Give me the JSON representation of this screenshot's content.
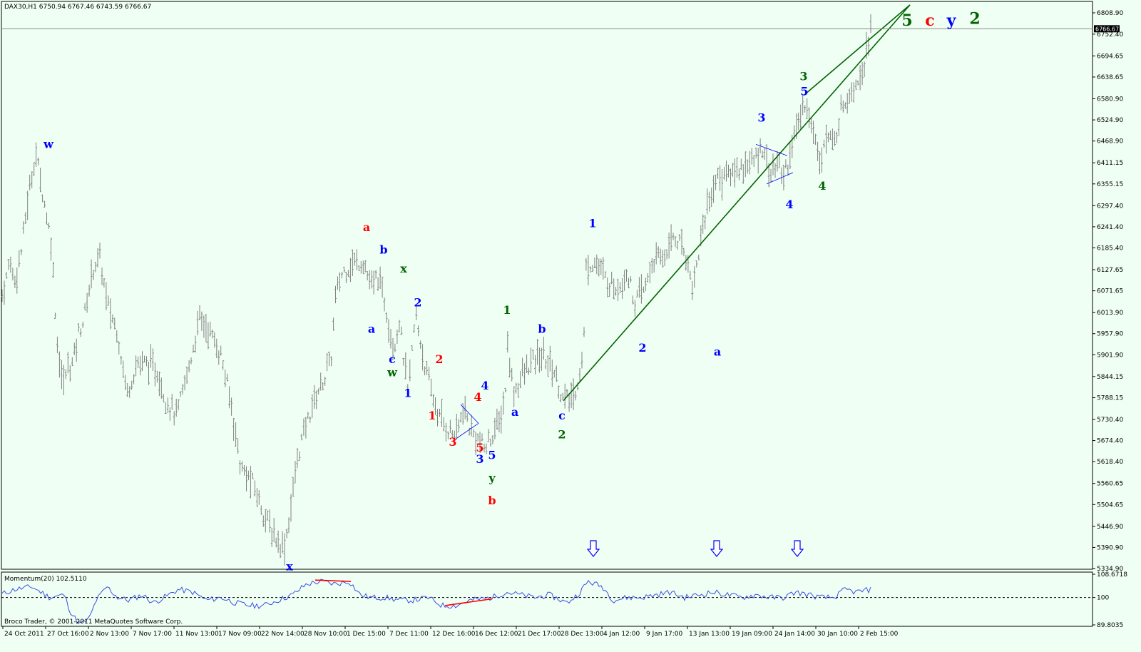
{
  "window": {
    "symbol_header": "DAX30,H1  6750.94 6767.46 6743.59 6766.67",
    "current_price_tag": "6766.67",
    "indicator_header": "Momentum(20) 102.5110",
    "copyright": "Broco Trader, © 2001-2011 MetaQuotes Software Corp."
  },
  "colors": {
    "background": "#f0fff4",
    "bars": "#808080",
    "momentum_line": "#3b4fe0",
    "trendline": "#006400",
    "divergence": "#ff0000",
    "wave_blue": "#0000ff",
    "wave_red": "#ff0000",
    "wave_green": "#006400"
  },
  "chart_data": [
    {
      "type": "bar",
      "title": "DAX30,H1",
      "ylim": [
        5334.9,
        6808.9
      ],
      "y_ticks": [
        "6808.90",
        "6752.40",
        "6694.65",
        "6638.65",
        "6580.90",
        "6524.90",
        "6468.90",
        "6411.15",
        "6355.15",
        "6297.40",
        "6241.40",
        "6185.40",
        "6127.65",
        "6071.65",
        "6013.90",
        "5957.90",
        "5901.90",
        "5844.15",
        "5788.15",
        "5730.40",
        "5674.40",
        "5618.40",
        "5560.65",
        "5504.65",
        "5446.90",
        "5390.90",
        "5334.90"
      ],
      "x_ticks": [
        "24 Oct 2011",
        "27 Oct 16:00",
        "2 Nov 13:00",
        "7 Nov 17:00",
        "11 Nov 13:00",
        "17 Nov 09:00",
        "22 Nov 14:00",
        "28 Nov 10:00",
        "1 Dec 15:00",
        "7 Dec 11:00",
        "12 Dec 16:00",
        "16 Dec 12:00",
        "21 Dec 17:00",
        "28 Dec 13:00",
        "4 Jan 12:00",
        "9 Jan 17:00",
        "13 Jan 13:00",
        "19 Jan 09:00",
        "24 Jan 14:00",
        "30 Jan 10:00",
        "2 Feb 15:00"
      ],
      "bar_count": 410,
      "last_close": 6766.67,
      "price_path": [
        [
          0,
          6040
        ],
        [
          8,
          6095
        ],
        [
          14,
          6160
        ],
        [
          20,
          6090
        ],
        [
          30,
          6180
        ],
        [
          38,
          6300
        ],
        [
          50,
          6440
        ],
        [
          60,
          6330
        ],
        [
          72,
          6200
        ],
        [
          80,
          5940
        ],
        [
          88,
          5820
        ],
        [
          95,
          5870
        ],
        [
          102,
          5880
        ],
        [
          110,
          5960
        ],
        [
          118,
          6000
        ],
        [
          130,
          6130
        ],
        [
          140,
          6160
        ],
        [
          150,
          6040
        ],
        [
          165,
          5960
        ],
        [
          178,
          5800
        ],
        [
          192,
          5880
        ],
        [
          205,
          5880
        ],
        [
          220,
          5860
        ],
        [
          233,
          5780
        ],
        [
          248,
          5740
        ],
        [
          265,
          5870
        ],
        [
          280,
          6000
        ],
        [
          295,
          5960
        ],
        [
          310,
          5900
        ],
        [
          325,
          5760
        ],
        [
          338,
          5600
        ],
        [
          355,
          5560
        ],
        [
          370,
          5480
        ],
        [
          385,
          5420
        ],
        [
          398,
          5390
        ],
        [
          405,
          5460
        ],
        [
          418,
          5640
        ],
        [
          430,
          5720
        ],
        [
          442,
          5790
        ],
        [
          455,
          5840
        ],
        [
          465,
          5900
        ],
        [
          470,
          6050
        ],
        [
          480,
          6120
        ],
        [
          495,
          6145
        ],
        [
          510,
          6150
        ],
        [
          520,
          6080
        ],
        [
          530,
          6110
        ],
        [
          540,
          6040
        ],
        [
          552,
          5920
        ],
        [
          560,
          5990
        ],
        [
          572,
          5800
        ],
        [
          583,
          6010
        ],
        [
          595,
          5880
        ],
        [
          605,
          5800
        ],
        [
          615,
          5740
        ],
        [
          630,
          5700
        ],
        [
          640,
          5690
        ],
        [
          650,
          5760
        ],
        [
          660,
          5700
        ],
        [
          670,
          5680
        ],
        [
          680,
          5650
        ],
        [
          690,
          5690
        ],
        [
          700,
          5720
        ],
        [
          708,
          5790
        ],
        [
          712,
          5930
        ],
        [
          720,
          5800
        ],
        [
          730,
          5840
        ],
        [
          745,
          5880
        ],
        [
          760,
          5900
        ],
        [
          775,
          5870
        ],
        [
          790,
          5780
        ],
        [
          805,
          5790
        ],
        [
          818,
          5900
        ],
        [
          822,
          6135
        ],
        [
          835,
          6150
        ],
        [
          850,
          6100
        ],
        [
          865,
          6080
        ],
        [
          880,
          6120
        ],
        [
          890,
          6040
        ],
        [
          905,
          6080
        ],
        [
          915,
          6150
        ],
        [
          930,
          6160
        ],
        [
          945,
          6220
        ],
        [
          960,
          6180
        ],
        [
          972,
          6080
        ],
        [
          985,
          6240
        ],
        [
          995,
          6320
        ],
        [
          1005,
          6370
        ],
        [
          1020,
          6380
        ],
        [
          1040,
          6400
        ],
        [
          1060,
          6420
        ],
        [
          1070,
          6460
        ],
        [
          1080,
          6380
        ],
        [
          1090,
          6410
        ],
        [
          1100,
          6380
        ],
        [
          1110,
          6450
        ],
        [
          1120,
          6520
        ],
        [
          1130,
          6580
        ],
        [
          1140,
          6490
        ],
        [
          1150,
          6430
        ],
        [
          1160,
          6480
        ],
        [
          1170,
          6460
        ],
        [
          1180,
          6560
        ],
        [
          1195,
          6610
        ],
        [
          1210,
          6660
        ],
        [
          1220,
          6766
        ]
      ],
      "trendlines": [
        {
          "from": [
            790,
            5780
          ],
          "to": [
            1276,
            6830
          ]
        },
        {
          "from": [
            1127,
            6590
          ],
          "to": [
            1276,
            6830
          ]
        }
      ],
      "horizontal_line": 6766.67,
      "wave_labels": [
        {
          "text": "w",
          "x": 68,
          "y": 6450,
          "color": "blue"
        },
        {
          "text": "x",
          "x": 406,
          "y": 5330,
          "color": "blue"
        },
        {
          "text": "a",
          "x": 514,
          "y": 6230,
          "color": "red"
        },
        {
          "text": "b",
          "x": 538,
          "y": 6170,
          "color": "blue"
        },
        {
          "text": "x",
          "x": 566,
          "y": 6120,
          "color": "green"
        },
        {
          "text": "a",
          "x": 521,
          "y": 5960,
          "color": "blue"
        },
        {
          "text": "c",
          "x": 550,
          "y": 5880,
          "color": "blue"
        },
        {
          "text": "w",
          "x": 550,
          "y": 5845,
          "color": "green"
        },
        {
          "text": "2",
          "x": 586,
          "y": 6030,
          "color": "blue"
        },
        {
          "text": "1",
          "x": 572,
          "y": 5790,
          "color": "blue"
        },
        {
          "text": "2",
          "x": 616,
          "y": 5880,
          "color": "red"
        },
        {
          "text": "1",
          "x": 606,
          "y": 5730,
          "color": "red"
        },
        {
          "text": "3",
          "x": 635,
          "y": 5660,
          "color": "red"
        },
        {
          "text": "4",
          "x": 670,
          "y": 5780,
          "color": "red"
        },
        {
          "text": "4",
          "x": 680,
          "y": 5810,
          "color": "blue"
        },
        {
          "text": "5",
          "x": 673,
          "y": 5645,
          "color": "red"
        },
        {
          "text": "3",
          "x": 673,
          "y": 5615,
          "color": "blue"
        },
        {
          "text": "5",
          "x": 690,
          "y": 5625,
          "color": "blue"
        },
        {
          "text": "y",
          "x": 690,
          "y": 5565,
          "color": "green"
        },
        {
          "text": "b",
          "x": 690,
          "y": 5505,
          "color": "red"
        },
        {
          "text": "1",
          "x": 711,
          "y": 6010,
          "color": "green"
        },
        {
          "text": "b",
          "x": 760,
          "y": 5960,
          "color": "blue"
        },
        {
          "text": "a",
          "x": 722,
          "y": 5740,
          "color": "blue"
        },
        {
          "text": "c",
          "x": 788,
          "y": 5730,
          "color": "blue"
        },
        {
          "text": "2",
          "x": 788,
          "y": 5680,
          "color": "green"
        },
        {
          "text": "1",
          "x": 831,
          "y": 6240,
          "color": "blue"
        },
        {
          "text": "2",
          "x": 901,
          "y": 5910,
          "color": "blue"
        },
        {
          "text": "a",
          "x": 1006,
          "y": 5900,
          "color": "blue"
        },
        {
          "text": "3",
          "x": 1068,
          "y": 6520,
          "color": "blue"
        },
        {
          "text": "4",
          "x": 1107,
          "y": 6290,
          "color": "blue"
        },
        {
          "text": "3",
          "x": 1127,
          "y": 6630,
          "color": "green"
        },
        {
          "text": "5",
          "x": 1128,
          "y": 6590,
          "color": "blue"
        },
        {
          "text": "4",
          "x": 1153,
          "y": 6340,
          "color": "green"
        },
        {
          "text": "5",
          "x": 1272,
          "y": 6775,
          "color": "green"
        },
        {
          "text": "c",
          "x": 1304,
          "y": 6775,
          "color": "red"
        },
        {
          "text": "y",
          "x": 1334,
          "y": 6775,
          "color": "blue"
        },
        {
          "text": "2",
          "x": 1367,
          "y": 6780,
          "color": "green"
        }
      ],
      "signal_arrows": [
        {
          "x": 832,
          "direction": "down"
        },
        {
          "x": 1005,
          "direction": "down"
        },
        {
          "x": 1118,
          "direction": "down"
        }
      ]
    },
    {
      "type": "line",
      "title": "Momentum(20) 102.5110",
      "ylim": [
        89.8035,
        108.6718
      ],
      "y_ticks": [
        "108.6718",
        "100",
        "89.8035"
      ],
      "reference_level": 100,
      "series": [
        {
          "name": "Momentum(20)",
          "values_path": [
            [
              0,
              101
            ],
            [
              20,
              103
            ],
            [
              45,
              104
            ],
            [
              70,
              100
            ],
            [
              90,
              101
            ],
            [
              100,
              94
            ],
            [
              112,
              90
            ],
            [
              125,
              92
            ],
            [
              135,
              99
            ],
            [
              150,
              104
            ],
            [
              165,
              100
            ],
            [
              180,
              99
            ],
            [
              200,
              101
            ],
            [
              215,
              98
            ],
            [
              230,
              100
            ],
            [
              250,
              103
            ],
            [
              270,
              102
            ],
            [
              290,
              99
            ],
            [
              310,
              100
            ],
            [
              330,
              98
            ],
            [
              350,
              97
            ],
            [
              370,
              97
            ],
            [
              390,
              99
            ],
            [
              410,
              101
            ],
            [
              420,
              103
            ],
            [
              430,
              105
            ],
            [
              450,
              106
            ],
            [
              470,
              105
            ],
            [
              490,
              106
            ],
            [
              505,
              101
            ],
            [
              520,
              100
            ],
            [
              540,
              100
            ],
            [
              560,
              99
            ],
            [
              580,
              99
            ],
            [
              600,
              100
            ],
            [
              620,
              97
            ],
            [
              640,
              97
            ],
            [
              660,
              99
            ],
            [
              690,
              100
            ],
            [
              710,
              102
            ],
            [
              730,
              101
            ],
            [
              750,
              100
            ],
            [
              770,
              101
            ],
            [
              795,
              98
            ],
            [
              810,
              101
            ],
            [
              825,
              106
            ],
            [
              845,
              104
            ],
            [
              860,
              99
            ],
            [
              880,
              100
            ],
            [
              900,
              100
            ],
            [
              920,
              101
            ],
            [
              940,
              102
            ],
            [
              960,
              100
            ],
            [
              980,
              101
            ],
            [
              1000,
              102
            ],
            [
              1020,
              101
            ],
            [
              1040,
              100
            ],
            [
              1060,
              101
            ],
            [
              1080,
              100
            ],
            [
              1100,
              100
            ],
            [
              1115,
              102
            ],
            [
              1135,
              101
            ],
            [
              1150,
              100
            ],
            [
              1170,
              100
            ],
            [
              1185,
              103
            ],
            [
              1200,
              102
            ],
            [
              1222,
              103
            ]
          ]
        }
      ],
      "divergence_lines": [
        {
          "from": [
            442,
            106.5
          ],
          "to": [
            492,
            106
          ]
        },
        {
          "from": [
            624,
            97
          ],
          "to": [
            690,
            99.5
          ]
        }
      ]
    }
  ]
}
